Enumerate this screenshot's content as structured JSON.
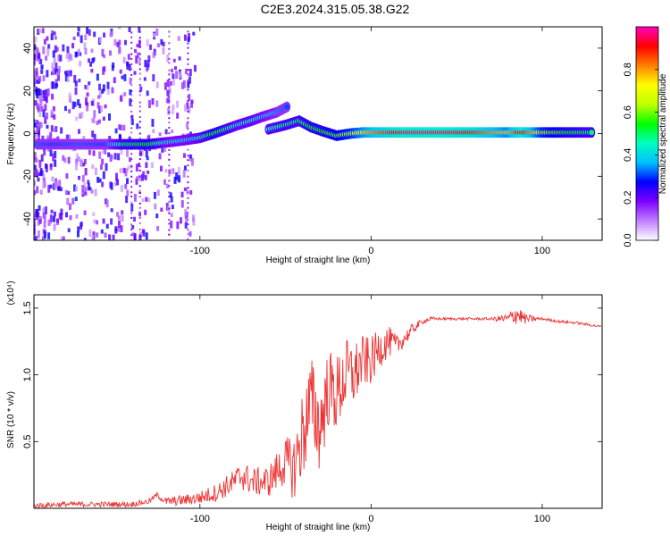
{
  "title": "C2E3.2024.315.05.38.G22",
  "chart_data": [
    {
      "type": "heatmap",
      "xlabel": "Height of straight line (km)",
      "ylabel": "Frequency (Hz)",
      "xlim": [
        -197,
        135
      ],
      "ylim": [
        -50,
        50
      ],
      "xticks": [
        -100,
        0,
        100
      ],
      "yticks": [
        -40,
        -20,
        0,
        20,
        40
      ],
      "colorbar": {
        "label": "Normalized spectral amplitude",
        "range": [
          0,
          1
        ],
        "ticks": [
          0.0,
          0.2,
          0.4,
          0.6,
          0.8
        ],
        "tick_labels": [
          "0.0",
          "0.2",
          "0.4",
          "0.6",
          "0.8"
        ],
        "colors": [
          "#ffffff",
          "#c080ff",
          "#8000ff",
          "#0000ff",
          "#00c0ff",
          "#00ffc0",
          "#00ff00",
          "#c0ff00",
          "#ffff00",
          "#ff8000",
          "#ff0000",
          "#ff00c0"
        ]
      },
      "trace": [
        {
          "x": -195,
          "y": -5,
          "a": 0.32
        },
        {
          "x": -185,
          "y": -5,
          "a": 0.3
        },
        {
          "x": -170,
          "y": -5,
          "a": 0.32
        },
        {
          "x": -155,
          "y": -5,
          "a": 0.3
        },
        {
          "x": -145,
          "y": -5,
          "a": 0.5
        },
        {
          "x": -130,
          "y": -5,
          "a": 0.55
        },
        {
          "x": -118,
          "y": -4,
          "a": 0.4
        },
        {
          "x": -108,
          "y": -3,
          "a": 0.4
        },
        {
          "x": -100,
          "y": -2,
          "a": 0.45
        },
        {
          "x": -92,
          "y": 0,
          "a": 0.55
        },
        {
          "x": -85,
          "y": 2,
          "a": 0.5
        },
        {
          "x": -78,
          "y": 4,
          "a": 0.45
        },
        {
          "x": -70,
          "y": 6,
          "a": 0.45
        },
        {
          "x": -63,
          "y": 8,
          "a": 0.4
        },
        {
          "x": -55,
          "y": 10,
          "a": 0.35
        },
        {
          "x": -48,
          "y": 13,
          "a": 0.3
        },
        {
          "x": -60,
          "y": 2,
          "a": 0.45
        },
        {
          "x": -50,
          "y": 4,
          "a": 0.5
        },
        {
          "x": -42,
          "y": 6,
          "a": 0.5
        },
        {
          "x": -35,
          "y": 3,
          "a": 0.55
        },
        {
          "x": -28,
          "y": 1,
          "a": 0.55
        },
        {
          "x": -20,
          "y": -1,
          "a": 0.6
        },
        {
          "x": -12,
          "y": 0,
          "a": 0.65
        },
        {
          "x": -5,
          "y": 0.5,
          "a": 0.75
        },
        {
          "x": 5,
          "y": 0.5,
          "a": 0.85
        },
        {
          "x": 20,
          "y": 0.5,
          "a": 0.95
        },
        {
          "x": 40,
          "y": 0.5,
          "a": 0.95
        },
        {
          "x": 60,
          "y": 0.5,
          "a": 0.9
        },
        {
          "x": 80,
          "y": 0.5,
          "a": 0.75
        },
        {
          "x": 88,
          "y": 0.5,
          "a": 0.95
        },
        {
          "x": 100,
          "y": 0.5,
          "a": 0.65
        },
        {
          "x": 115,
          "y": 0.5,
          "a": 0.55
        },
        {
          "x": 130,
          "y": 0.5,
          "a": 0.5
        }
      ]
    },
    {
      "type": "line",
      "xlabel": "Height of straight line (km)",
      "ylabel": "SNR (10 * v/v)",
      "scale_label": "(x10⁴)",
      "xlim": [
        -197,
        135
      ],
      "ylim": [
        0,
        1.6
      ],
      "xticks": [
        -100,
        0,
        100
      ],
      "yticks": [
        0.5,
        1.0,
        1.5
      ],
      "ytick_labels": [
        "0.5",
        "1.0",
        "1.5"
      ],
      "color": "#ee3333",
      "x": [
        -197,
        -180,
        -160,
        -140,
        -130,
        -125,
        -120,
        -110,
        -100,
        -90,
        -80,
        -75,
        -70,
        -60,
        -50,
        -45,
        -40,
        -35,
        -30,
        -25,
        -20,
        -15,
        -10,
        -5,
        0,
        5,
        10,
        15,
        20,
        25,
        30,
        35,
        40,
        50,
        60,
        70,
        80,
        85,
        90,
        95,
        100,
        110,
        120,
        130,
        135
      ],
      "y": [
        0.02,
        0.03,
        0.03,
        0.03,
        0.05,
        0.1,
        0.05,
        0.06,
        0.08,
        0.12,
        0.2,
        0.25,
        0.2,
        0.2,
        0.35,
        0.3,
        0.55,
        0.8,
        0.6,
        0.9,
        0.85,
        1.0,
        1.0,
        1.1,
        1.1,
        1.2,
        1.25,
        1.22,
        1.28,
        1.35,
        1.4,
        1.42,
        1.42,
        1.42,
        1.42,
        1.42,
        1.42,
        1.46,
        1.42,
        1.42,
        1.42,
        1.4,
        1.39,
        1.37,
        1.36
      ],
      "noise": [
        0.02,
        0.02,
        0.02,
        0.02,
        0.02,
        0.02,
        0.03,
        0.04,
        0.05,
        0.07,
        0.09,
        0.12,
        0.1,
        0.12,
        0.18,
        0.25,
        0.35,
        0.35,
        0.35,
        0.3,
        0.3,
        0.28,
        0.25,
        0.2,
        0.18,
        0.15,
        0.12,
        0.08,
        0.06,
        0.04,
        0.02,
        0.015,
        0.01,
        0.01,
        0.01,
        0.01,
        0.04,
        0.08,
        0.04,
        0.02,
        0.01,
        0.01,
        0.01,
        0.01,
        0.01
      ]
    }
  ]
}
